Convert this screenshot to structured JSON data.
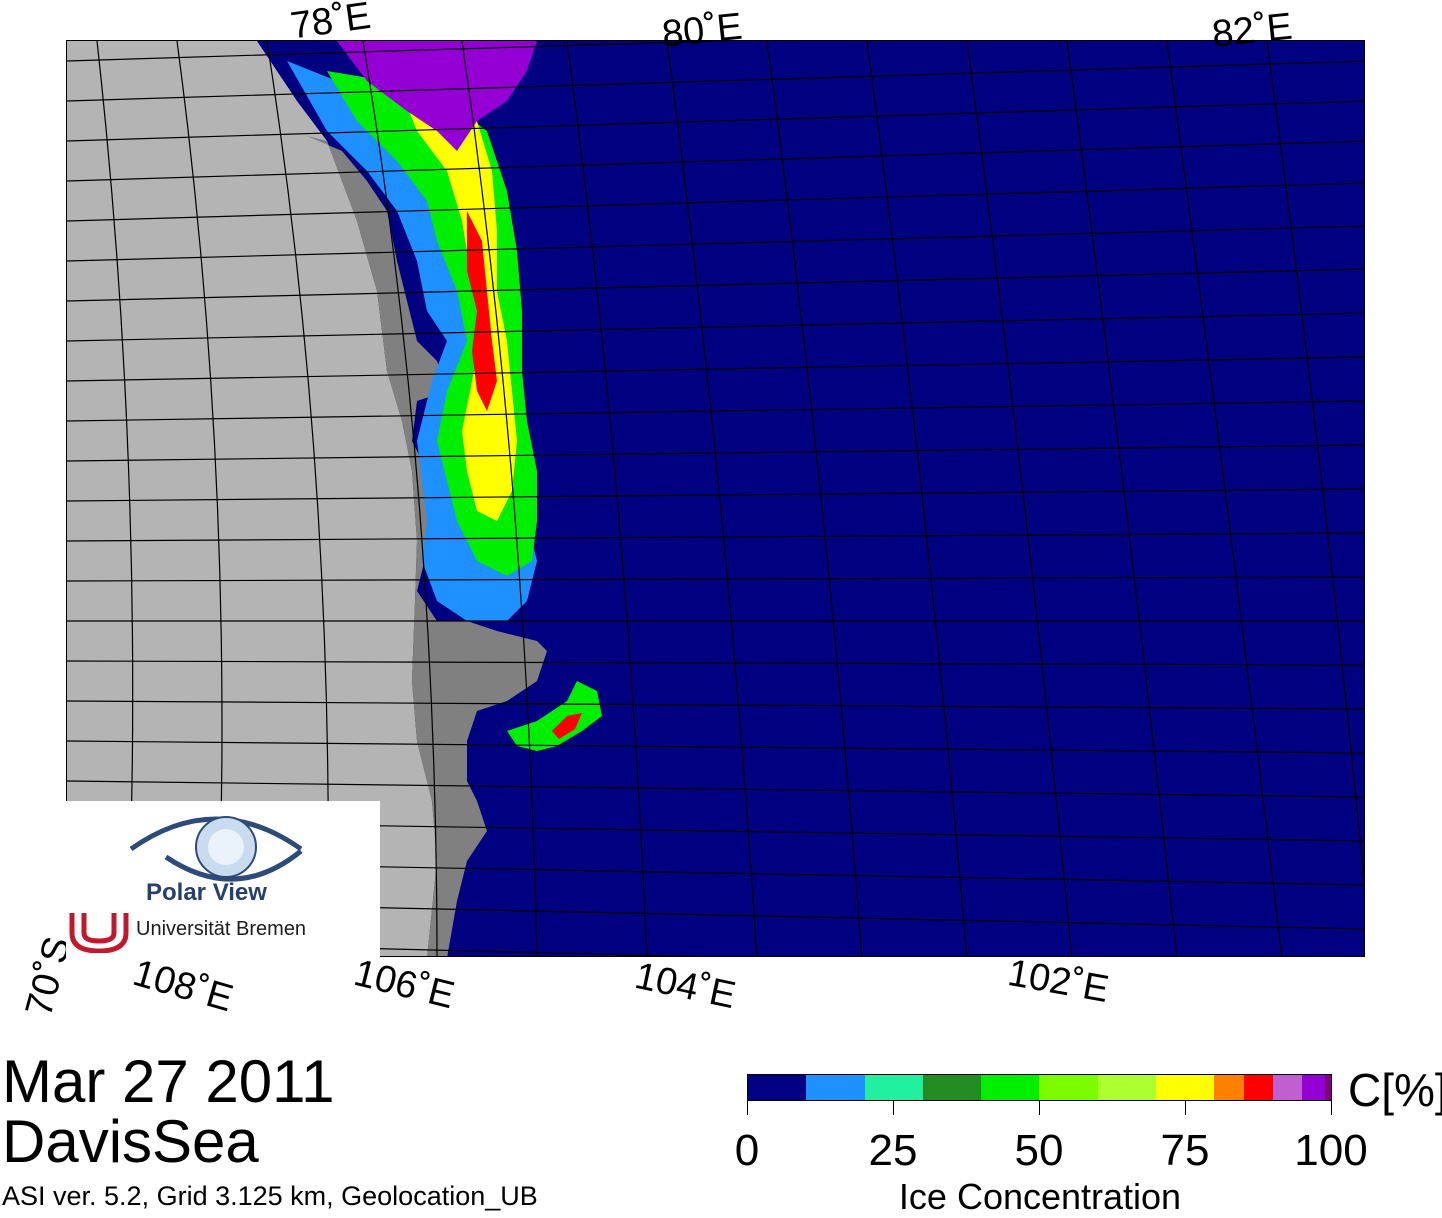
{
  "map": {
    "top_lon_labels": [
      "78˚E",
      "80˚E",
      "82˚E"
    ],
    "bottom_lon_labels": [
      "108˚E",
      "106˚E",
      "104˚E",
      "102˚E"
    ],
    "lat_label": "70˚S",
    "colors": {
      "ocean": "#000080",
      "land": "#b4b4b4",
      "ice_shelf": "#808080"
    }
  },
  "logo": {
    "title": "Polar View",
    "university": "Universität Bremen"
  },
  "caption": {
    "date": "Mar 27 2011",
    "region": "DavisSea",
    "info": "ASI ver. 5.2,  Grid 3.125 km, Geolocation_UB"
  },
  "colorbar": {
    "unit": "C[%]",
    "title": "Ice Concentration",
    "ticks": [
      "0",
      "25",
      "50",
      "75",
      "100"
    ],
    "colors": [
      "#000080",
      "#1e90ff",
      "#20f0a0",
      "#228b22",
      "#00ee00",
      "#7cfc00",
      "#adff2f",
      "#ffff00",
      "#ff8000",
      "#ff0000",
      "#c060d0",
      "#9400d3",
      "#800080"
    ]
  }
}
